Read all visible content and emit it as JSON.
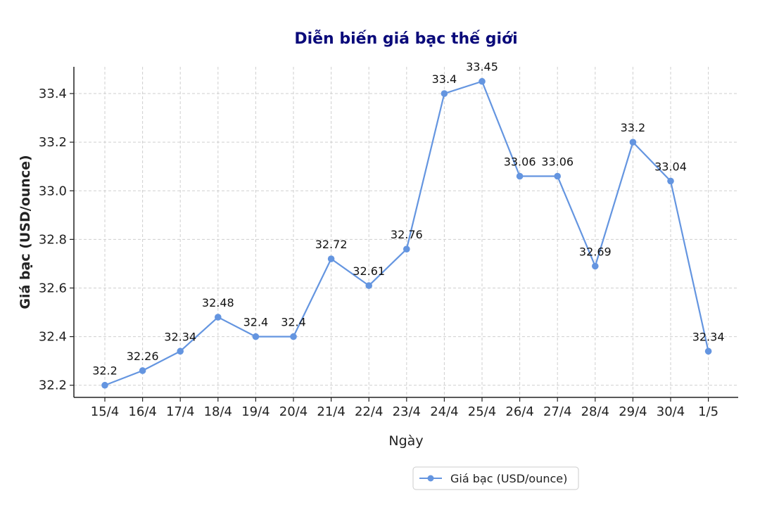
{
  "chart_data": {
    "type": "line",
    "title": "Diễn biến giá bạc thế giới",
    "xlabel": "Ngày",
    "ylabel": "Giá bạc (USD/ounce)",
    "categories": [
      "15/4",
      "16/4",
      "17/4",
      "18/4",
      "19/4",
      "20/4",
      "21/4",
      "22/4",
      "23/4",
      "24/4",
      "25/4",
      "26/4",
      "27/4",
      "28/4",
      "29/4",
      "30/4",
      "1/5"
    ],
    "series": [
      {
        "name": "Giá bạc (USD/ounce)",
        "values": [
          32.2,
          32.26,
          32.34,
          32.48,
          32.4,
          32.4,
          32.72,
          32.61,
          32.76,
          33.4,
          33.45,
          33.06,
          33.06,
          32.69,
          33.2,
          33.04,
          32.34
        ],
        "color": "#6495e0"
      }
    ],
    "yticks": [
      "32.2",
      "32.4",
      "32.6",
      "32.8",
      "33.0",
      "33.2",
      "33.4"
    ],
    "ylim": [
      32.15,
      33.51
    ],
    "grid": true,
    "legend_position": "bottom-right"
  }
}
